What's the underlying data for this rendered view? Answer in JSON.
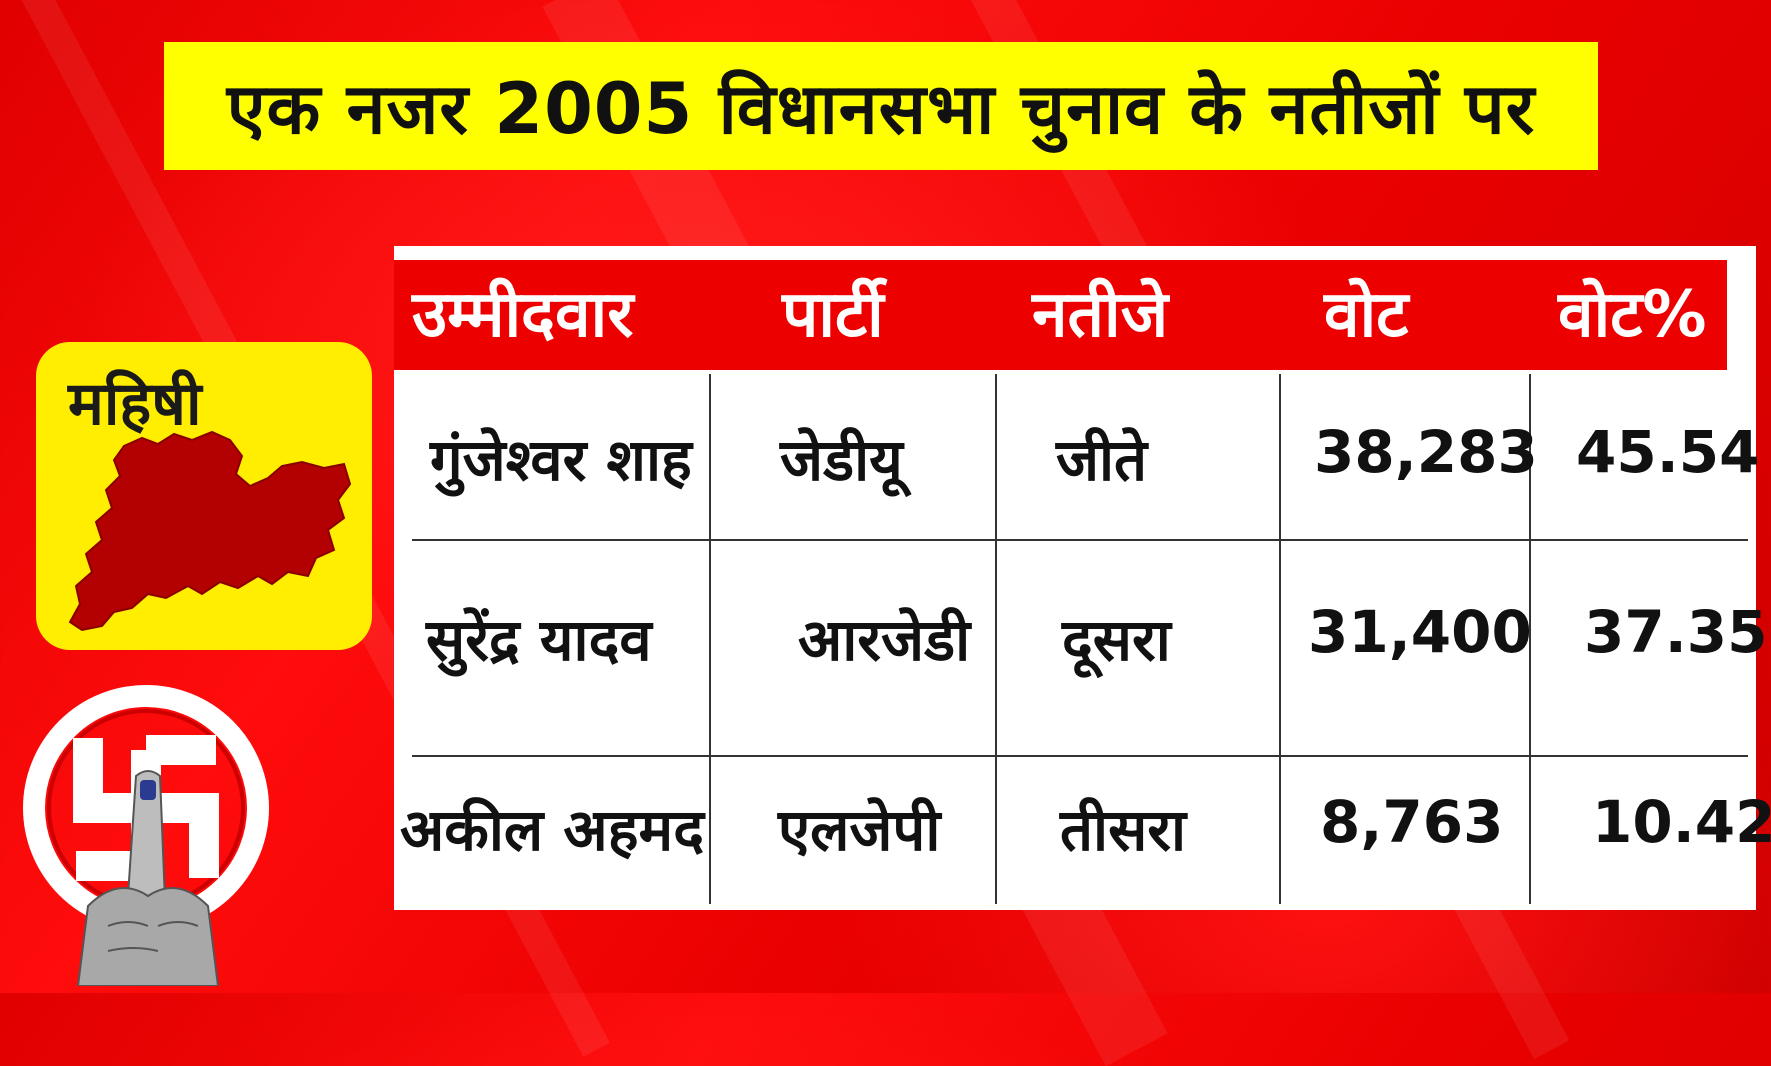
{
  "title": "एक नजर 2005 विधानसभा चुनाव के नतीजों पर",
  "constituency": "महिषी",
  "table": {
    "headers": [
      "उम्मीदवार",
      "पार्टी",
      "नतीजे",
      "वोट",
      "वोट%"
    ],
    "rows": [
      [
        "गुंजेश्वर शाह",
        "जेडीयू",
        "जीते",
        "38,283",
        "45.54"
      ],
      [
        "सुरेंद्र यादव",
        "आरजेडी",
        "दूसरा",
        "31,400",
        "37.35"
      ],
      [
        "अकील अहमद",
        "एलजेपी",
        "तीसरा",
        "8,763",
        "10.42"
      ]
    ]
  },
  "colors": {
    "background": "#e60000",
    "banner": "#ffff00",
    "header": "#ec0000",
    "region_card": "#ffee00",
    "map_fill": "#b30000"
  },
  "icons": {
    "map": "constituency-map-icon",
    "emblem": "swastik-voting-finger-icon"
  }
}
